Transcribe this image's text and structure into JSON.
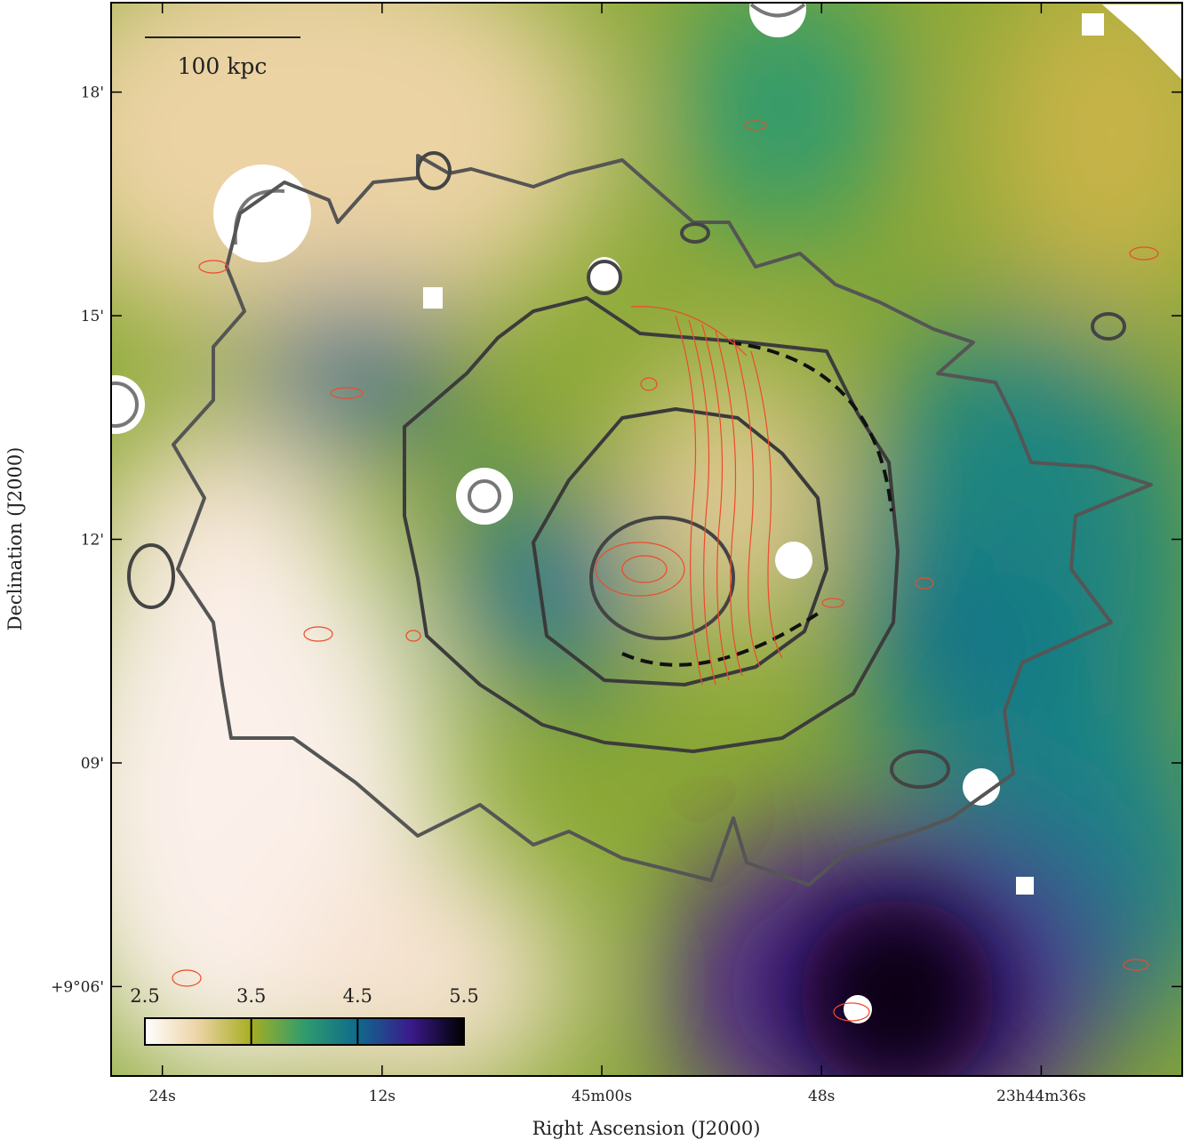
{
  "chart_data": {
    "type": "image",
    "xlabel": "Right Ascension (J2000)",
    "ylabel": "Declination (J2000)",
    "xlim": [
      26.8,
      -31.7
    ],
    "xticks": [
      {
        "value": 24,
        "label": "24s"
      },
      {
        "value": 12,
        "label": "12s"
      },
      {
        "value": 0,
        "label": "45m00s"
      },
      {
        "value": -12,
        "label": "48s"
      },
      {
        "value": -24,
        "label": "23h44m36s"
      }
    ],
    "ylim": [
      4.8,
      19.2
    ],
    "yticks": [
      {
        "value": 18,
        "label": "18'"
      },
      {
        "value": 15,
        "label": "15'"
      },
      {
        "value": 12,
        "label": "12'"
      },
      {
        "value": 9,
        "label": "09'"
      },
      {
        "value": 6,
        "label": "+9°06'"
      }
    ],
    "colorbar": {
      "lim": [
        2.5,
        5.5
      ],
      "ticks": [
        2.5,
        3.5,
        4.5,
        5.5
      ],
      "colors": [
        "#ffffff",
        "#ecd3a4",
        "#a6ae22",
        "#2f9c6c",
        "#0f6a8c",
        "#3b1a8c",
        "#000000"
      ]
    },
    "scalebar_label": "100 kpc"
  }
}
